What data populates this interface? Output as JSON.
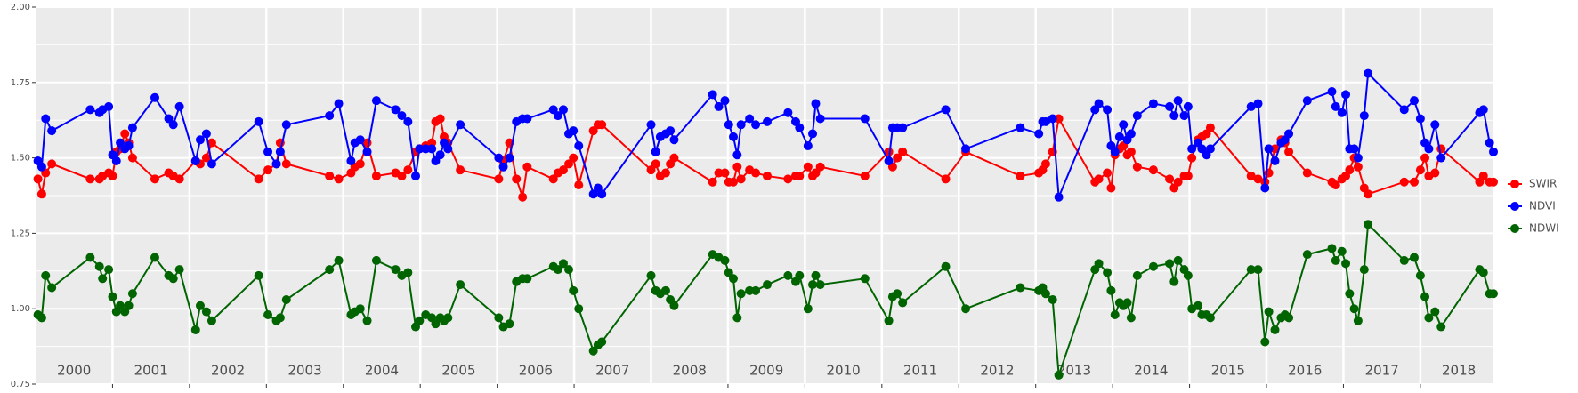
{
  "chart_data": {
    "type": "line",
    "x": [
      2000.03,
      2000.08,
      2000.13,
      2000.21,
      2000.71,
      2000.83,
      2000.87,
      2000.95,
      2001.0,
      2001.05,
      2001.1,
      2001.16,
      2001.21,
      2001.26,
      2001.55,
      2001.73,
      2001.79,
      2001.87,
      2002.08,
      2002.14,
      2002.22,
      2002.29,
      2002.9,
      2003.02,
      2003.13,
      2003.18,
      2003.26,
      2003.82,
      2003.94,
      2004.1,
      2004.15,
      2004.22,
      2004.31,
      2004.43,
      2004.68,
      2004.76,
      2004.84,
      2004.94,
      2004.99,
      2005.07,
      2005.15,
      2005.2,
      2005.26,
      2005.31,
      2005.36,
      2005.52,
      2006.02,
      2006.08,
      2006.16,
      2006.25,
      2006.33,
      2006.39,
      2006.73,
      2006.79,
      2006.86,
      2006.93,
      2006.99,
      2007.06,
      2007.25,
      2007.31,
      2007.36,
      2008.0,
      2008.06,
      2008.12,
      2008.19,
      2008.25,
      2008.3,
      2008.8,
      2008.88,
      2008.96,
      2009.01,
      2009.07,
      2009.12,
      2009.17,
      2009.28,
      2009.36,
      2009.51,
      2009.78,
      2009.88,
      2009.93,
      2010.04,
      2010.1,
      2010.14,
      2010.2,
      2010.78,
      2011.09,
      2011.14,
      2011.2,
      2011.27,
      2011.83,
      2012.09,
      2012.8,
      2013.04,
      2013.09,
      2013.13,
      2013.22,
      2013.3,
      2013.77,
      2013.82,
      2013.93,
      2013.98,
      2014.03,
      2014.09,
      2014.14,
      2014.19,
      2014.24,
      2014.32,
      2014.53,
      2014.74,
      2014.8,
      2014.85,
      2014.93,
      2014.98,
      2015.03,
      2015.11,
      2015.16,
      2015.22,
      2015.27,
      2015.8,
      2015.89,
      2015.98,
      2016.03,
      2016.11,
      2016.19,
      2016.24,
      2016.29,
      2016.53,
      2016.85,
      2016.9,
      2016.98,
      2017.03,
      2017.08,
      2017.14,
      2017.19,
      2017.27,
      2017.32,
      2017.79,
      2017.92,
      2018.0,
      2018.06,
      2018.11,
      2018.19,
      2018.27,
      2018.77,
      2018.82,
      2018.9,
      2018.95
    ],
    "series": [
      {
        "name": "SWIR",
        "color": "#ff0000",
        "values": [
          1.43,
          1.38,
          1.45,
          1.48,
          1.43,
          1.43,
          1.44,
          1.45,
          1.44,
          1.52,
          1.53,
          1.58,
          1.55,
          1.5,
          1.43,
          1.45,
          1.44,
          1.43,
          1.49,
          1.48,
          1.5,
          1.55,
          1.43,
          1.46,
          1.48,
          1.55,
          1.48,
          1.44,
          1.43,
          1.45,
          1.47,
          1.48,
          1.55,
          1.44,
          1.45,
          1.44,
          1.46,
          1.52,
          1.53,
          1.54,
          1.55,
          1.62,
          1.63,
          1.57,
          1.55,
          1.46,
          1.43,
          1.49,
          1.55,
          1.43,
          1.37,
          1.47,
          1.43,
          1.45,
          1.46,
          1.48,
          1.5,
          1.41,
          1.59,
          1.61,
          1.61,
          1.46,
          1.48,
          1.44,
          1.45,
          1.48,
          1.5,
          1.42,
          1.45,
          1.45,
          1.42,
          1.42,
          1.47,
          1.43,
          1.46,
          1.45,
          1.44,
          1.43,
          1.44,
          1.44,
          1.47,
          1.44,
          1.45,
          1.47,
          1.44,
          1.52,
          1.47,
          1.5,
          1.52,
          1.43,
          1.52,
          1.44,
          1.45,
          1.46,
          1.48,
          1.52,
          1.63,
          1.42,
          1.43,
          1.45,
          1.4,
          1.51,
          1.53,
          1.54,
          1.51,
          1.52,
          1.47,
          1.46,
          1.43,
          1.4,
          1.42,
          1.44,
          1.44,
          1.5,
          1.56,
          1.57,
          1.58,
          1.6,
          1.44,
          1.43,
          1.42,
          1.45,
          1.53,
          1.56,
          1.55,
          1.52,
          1.45,
          1.42,
          1.41,
          1.43,
          1.44,
          1.46,
          1.5,
          1.47,
          1.4,
          1.38,
          1.42,
          1.42,
          1.46,
          1.5,
          1.44,
          1.45,
          1.53,
          1.42,
          1.44,
          1.42,
          1.42
        ]
      },
      {
        "name": "NDVI",
        "color": "#0000ff",
        "values": [
          1.49,
          1.47,
          1.63,
          1.59,
          1.66,
          1.65,
          1.66,
          1.67,
          1.51,
          1.49,
          1.55,
          1.53,
          1.54,
          1.6,
          1.7,
          1.63,
          1.61,
          1.67,
          1.49,
          1.56,
          1.58,
          1.48,
          1.62,
          1.52,
          1.48,
          1.52,
          1.61,
          1.64,
          1.68,
          1.49,
          1.55,
          1.56,
          1.52,
          1.69,
          1.66,
          1.64,
          1.62,
          1.44,
          1.53,
          1.53,
          1.53,
          1.49,
          1.51,
          1.55,
          1.53,
          1.61,
          1.5,
          1.47,
          1.5,
          1.62,
          1.63,
          1.63,
          1.66,
          1.64,
          1.66,
          1.58,
          1.59,
          1.54,
          1.38,
          1.4,
          1.38,
          1.61,
          1.52,
          1.57,
          1.58,
          1.59,
          1.56,
          1.71,
          1.67,
          1.69,
          1.61,
          1.57,
          1.51,
          1.61,
          1.63,
          1.61,
          1.62,
          1.65,
          1.62,
          1.6,
          1.54,
          1.58,
          1.68,
          1.63,
          1.63,
          1.49,
          1.6,
          1.6,
          1.6,
          1.66,
          1.53,
          1.6,
          1.58,
          1.62,
          1.62,
          1.63,
          1.37,
          1.66,
          1.68,
          1.66,
          1.54,
          1.52,
          1.57,
          1.61,
          1.56,
          1.58,
          1.64,
          1.68,
          1.67,
          1.64,
          1.69,
          1.64,
          1.67,
          1.53,
          1.55,
          1.53,
          1.51,
          1.53,
          1.67,
          1.68,
          1.4,
          1.53,
          1.49,
          1.55,
          1.56,
          1.58,
          1.69,
          1.72,
          1.67,
          1.65,
          1.71,
          1.53,
          1.53,
          1.5,
          1.64,
          1.78,
          1.66,
          1.69,
          1.63,
          1.55,
          1.53,
          1.61,
          1.5,
          1.65,
          1.66,
          1.55,
          1.52
        ]
      },
      {
        "name": "NDWI",
        "color": "#006400",
        "values": [
          0.98,
          0.97,
          1.11,
          1.07,
          1.17,
          1.14,
          1.1,
          1.13,
          1.04,
          0.99,
          1.01,
          0.99,
          1.01,
          1.05,
          1.17,
          1.11,
          1.1,
          1.13,
          0.93,
          1.01,
          0.99,
          0.96,
          1.11,
          0.98,
          0.96,
          0.97,
          1.03,
          1.13,
          1.16,
          0.98,
          0.99,
          1.0,
          0.96,
          1.16,
          1.13,
          1.11,
          1.12,
          0.94,
          0.96,
          0.98,
          0.97,
          0.95,
          0.97,
          0.96,
          0.97,
          1.08,
          0.97,
          0.94,
          0.95,
          1.09,
          1.1,
          1.1,
          1.14,
          1.13,
          1.15,
          1.13,
          1.06,
          1.0,
          0.86,
          0.88,
          0.89,
          1.11,
          1.06,
          1.05,
          1.06,
          1.03,
          1.01,
          1.18,
          1.17,
          1.16,
          1.12,
          1.1,
          0.97,
          1.05,
          1.06,
          1.06,
          1.08,
          1.11,
          1.09,
          1.11,
          1.0,
          1.08,
          1.11,
          1.08,
          1.1,
          0.96,
          1.04,
          1.05,
          1.02,
          1.14,
          1.0,
          1.07,
          1.06,
          1.07,
          1.05,
          1.03,
          0.78,
          1.13,
          1.15,
          1.12,
          1.06,
          0.98,
          1.02,
          1.01,
          1.02,
          0.97,
          1.11,
          1.14,
          1.15,
          1.09,
          1.16,
          1.13,
          1.11,
          1.0,
          1.01,
          0.98,
          0.98,
          0.97,
          1.13,
          1.13,
          0.89,
          0.99,
          0.93,
          0.97,
          0.98,
          0.97,
          1.18,
          1.2,
          1.16,
          1.19,
          1.15,
          1.05,
          1.0,
          0.96,
          1.13,
          1.28,
          1.16,
          1.17,
          1.11,
          1.04,
          0.97,
          0.99,
          0.94,
          1.13,
          1.12,
          1.05,
          1.05
        ]
      }
    ],
    "xlim": [
      2000.0,
      2018.95
    ],
    "xticks": [
      {
        "value": 2000.5,
        "label": "2000"
      },
      {
        "value": 2001.5,
        "label": "2001"
      },
      {
        "value": 2002.5,
        "label": "2002"
      },
      {
        "value": 2003.5,
        "label": "2003"
      },
      {
        "value": 2004.5,
        "label": "2004"
      },
      {
        "value": 2005.5,
        "label": "2005"
      },
      {
        "value": 2006.5,
        "label": "2006"
      },
      {
        "value": 2007.5,
        "label": "2007"
      },
      {
        "value": 2008.5,
        "label": "2008"
      },
      {
        "value": 2009.5,
        "label": "2009"
      },
      {
        "value": 2010.5,
        "label": "2010"
      },
      {
        "value": 2011.5,
        "label": "2011"
      },
      {
        "value": 2012.5,
        "label": "2012"
      },
      {
        "value": 2013.5,
        "label": "2013"
      },
      {
        "value": 2014.5,
        "label": "2014"
      },
      {
        "value": 2015.5,
        "label": "2015"
      },
      {
        "value": 2016.5,
        "label": "2016"
      },
      {
        "value": 2017.5,
        "label": "2017"
      },
      {
        "value": 2018.5,
        "label": "2018"
      }
    ],
    "ylim": [
      0.75,
      2.0
    ],
    "yticks": [
      0.75,
      {
        "value": 1,
        "label": "1.00"
      },
      1.25,
      {
        "value": 1.5,
        "label": "1.50"
      },
      1.75,
      {
        "value": 2,
        "label": "2.00"
      }
    ],
    "grid": true,
    "legend": "right",
    "markers": true
  }
}
